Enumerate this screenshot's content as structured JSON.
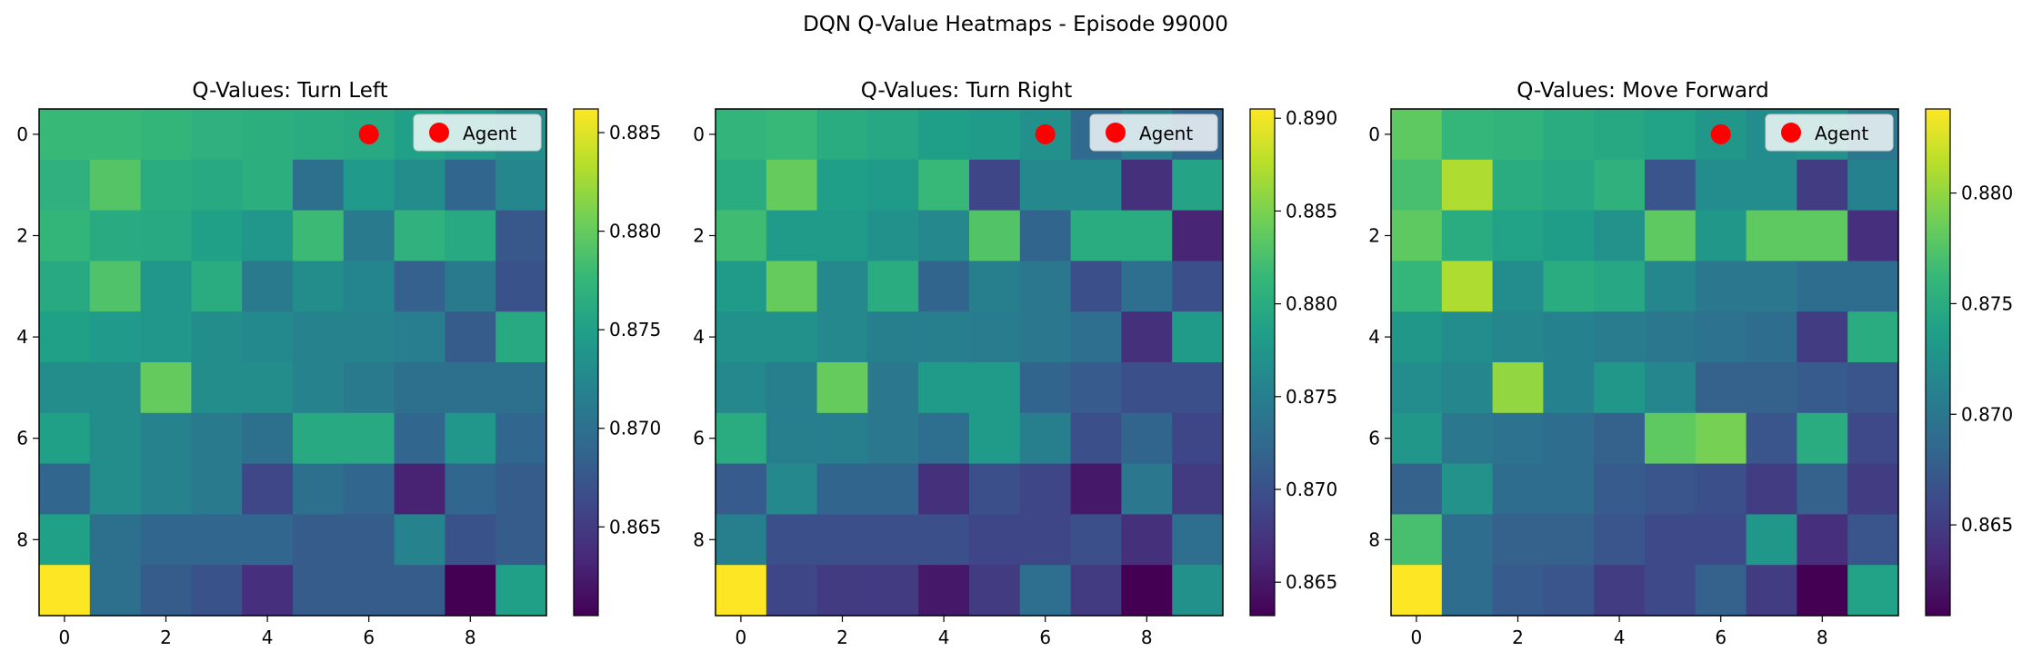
{
  "suptitle": "DQN Q-Value Heatmaps - Episode 99000",
  "colormap": [
    "#440154",
    "#482878",
    "#3e4989",
    "#31688e",
    "#26828e",
    "#1f9e89",
    "#35b779",
    "#6ece58",
    "#b5de2b",
    "#fde725"
  ],
  "chart_data": [
    {
      "type": "heatmap",
      "title": "Q-Values: Turn Left",
      "x_ticks": [
        "0",
        "2",
        "4",
        "6",
        "8"
      ],
      "y_ticks": [
        "0",
        "2",
        "4",
        "6",
        "8"
      ],
      "x": [
        0,
        1,
        2,
        3,
        4,
        5,
        6,
        7,
        8,
        9
      ],
      "y": [
        0,
        1,
        2,
        3,
        4,
        5,
        6,
        7,
        8,
        9
      ],
      "agent": {
        "x": 6,
        "y": 0,
        "label": "Agent",
        "color": "#ff0000"
      },
      "colorbar": {
        "min": 0.8605,
        "max": 0.8862,
        "ticks": [
          0.865,
          0.87,
          0.875,
          0.88,
          0.885
        ],
        "tick_labels": [
          "0.865",
          "0.870",
          "0.875",
          "0.880",
          "0.885"
        ]
      },
      "values": [
        [
          0.8778,
          0.8778,
          0.8774,
          0.8768,
          0.8766,
          0.8764,
          0.876,
          0.875,
          0.8742,
          0.873
        ],
        [
          0.8768,
          0.8792,
          0.8764,
          0.876,
          0.8766,
          0.87,
          0.8744,
          0.873,
          0.869,
          0.8724
        ],
        [
          0.8774,
          0.8762,
          0.876,
          0.875,
          0.874,
          0.878,
          0.871,
          0.877,
          0.876,
          0.8676
        ],
        [
          0.876,
          0.879,
          0.874,
          0.8764,
          0.871,
          0.873,
          0.8722,
          0.8684,
          0.871,
          0.867
        ],
        [
          0.875,
          0.8744,
          0.874,
          0.873,
          0.8726,
          0.872,
          0.872,
          0.8714,
          0.868,
          0.876
        ],
        [
          0.873,
          0.873,
          0.88,
          0.873,
          0.873,
          0.872,
          0.871,
          0.87,
          0.87,
          0.87
        ],
        [
          0.875,
          0.873,
          0.872,
          0.871,
          0.87,
          0.876,
          0.876,
          0.869,
          0.874,
          0.869
        ],
        [
          0.869,
          0.873,
          0.872,
          0.871,
          0.866,
          0.87,
          0.869,
          0.863,
          0.869,
          0.868
        ],
        [
          0.875,
          0.87,
          0.869,
          0.869,
          0.869,
          0.868,
          0.868,
          0.872,
          0.867,
          0.868
        ],
        [
          0.8862,
          0.87,
          0.868,
          0.867,
          0.864,
          0.868,
          0.868,
          0.868,
          0.8605,
          0.875
        ]
      ]
    },
    {
      "type": "heatmap",
      "title": "Q-Values: Turn Right",
      "x_ticks": [
        "0",
        "2",
        "4",
        "6",
        "8"
      ],
      "y_ticks": [
        "0",
        "2",
        "4",
        "6",
        "8"
      ],
      "x": [
        0,
        1,
        2,
        3,
        4,
        5,
        6,
        7,
        8,
        9
      ],
      "y": [
        0,
        1,
        2,
        3,
        4,
        5,
        6,
        7,
        8,
        9
      ],
      "agent": {
        "x": 6,
        "y": 0,
        "label": "Agent",
        "color": "#ff0000"
      },
      "colorbar": {
        "min": 0.8632,
        "max": 0.8905,
        "ticks": [
          0.865,
          0.87,
          0.875,
          0.88,
          0.885,
          0.89
        ],
        "tick_labels": [
          "0.865",
          "0.870",
          "0.875",
          "0.880",
          "0.885",
          "0.890"
        ]
      },
      "values": [
        [
          0.881,
          0.8815,
          0.88,
          0.8795,
          0.8785,
          0.878,
          0.877,
          0.8725,
          0.875,
          0.872
        ],
        [
          0.88,
          0.884,
          0.8785,
          0.878,
          0.8815,
          0.869,
          0.876,
          0.876,
          0.867,
          0.879
        ],
        [
          0.882,
          0.878,
          0.878,
          0.877,
          0.876,
          0.883,
          0.872,
          0.88,
          0.88,
          0.866
        ],
        [
          0.878,
          0.884,
          0.876,
          0.88,
          0.872,
          0.875,
          0.874,
          0.87,
          0.873,
          0.87
        ],
        [
          0.877,
          0.877,
          0.876,
          0.875,
          0.875,
          0.8745,
          0.874,
          0.873,
          0.867,
          0.878
        ],
        [
          0.876,
          0.875,
          0.884,
          0.874,
          0.878,
          0.878,
          0.872,
          0.871,
          0.87,
          0.87
        ],
        [
          0.88,
          0.875,
          0.875,
          0.874,
          0.873,
          0.878,
          0.875,
          0.87,
          0.872,
          0.869
        ],
        [
          0.871,
          0.876,
          0.872,
          0.872,
          0.867,
          0.87,
          0.869,
          0.865,
          0.874,
          0.868
        ],
        [
          0.875,
          0.87,
          0.87,
          0.87,
          0.87,
          0.869,
          0.869,
          0.87,
          0.867,
          0.873
        ],
        [
          0.8905,
          0.869,
          0.868,
          0.868,
          0.865,
          0.868,
          0.873,
          0.868,
          0.8632,
          0.877
        ]
      ]
    },
    {
      "type": "heatmap",
      "title": "Q-Values: Move Forward",
      "x_ticks": [
        "0",
        "2",
        "4",
        "6",
        "8"
      ],
      "y_ticks": [
        "0",
        "2",
        "4",
        "6",
        "8"
      ],
      "x": [
        0,
        1,
        2,
        3,
        4,
        5,
        6,
        7,
        8,
        9
      ],
      "y": [
        0,
        1,
        2,
        3,
        4,
        5,
        6,
        7,
        8,
        9
      ],
      "agent": {
        "x": 6,
        "y": 0,
        "label": "Agent",
        "color": "#ff0000"
      },
      "colorbar": {
        "min": 0.8609,
        "max": 0.8838,
        "ticks": [
          0.865,
          0.87,
          0.875,
          0.88
        ],
        "tick_labels": [
          "0.865",
          "0.870",
          "0.875",
          "0.880"
        ]
      },
      "values": [
        [
          0.878,
          0.876,
          0.8758,
          0.875,
          0.8746,
          0.874,
          0.873,
          0.872,
          0.8725,
          0.87
        ],
        [
          0.877,
          0.881,
          0.875,
          0.8745,
          0.8755,
          0.867,
          0.872,
          0.872,
          0.865,
          0.871
        ],
        [
          0.878,
          0.875,
          0.874,
          0.8735,
          0.8725,
          0.878,
          0.873,
          0.878,
          0.878,
          0.864
        ],
        [
          0.876,
          0.881,
          0.872,
          0.875,
          0.8745,
          0.8715,
          0.87,
          0.87,
          0.869,
          0.869
        ],
        [
          0.873,
          0.872,
          0.8715,
          0.871,
          0.8705,
          0.87,
          0.8695,
          0.869,
          0.865,
          0.875
        ],
        [
          0.872,
          0.8715,
          0.88,
          0.871,
          0.873,
          0.8715,
          0.868,
          0.868,
          0.8675,
          0.867
        ],
        [
          0.873,
          0.87,
          0.8695,
          0.869,
          0.868,
          0.878,
          0.879,
          0.867,
          0.875,
          0.866
        ],
        [
          0.868,
          0.8725,
          0.869,
          0.869,
          0.8675,
          0.867,
          0.8665,
          0.865,
          0.868,
          0.865
        ],
        [
          0.877,
          0.869,
          0.868,
          0.868,
          0.867,
          0.866,
          0.866,
          0.873,
          0.864,
          0.867
        ],
        [
          0.8838,
          0.869,
          0.8675,
          0.867,
          0.865,
          0.866,
          0.868,
          0.865,
          0.8609,
          0.874
        ]
      ]
    }
  ]
}
